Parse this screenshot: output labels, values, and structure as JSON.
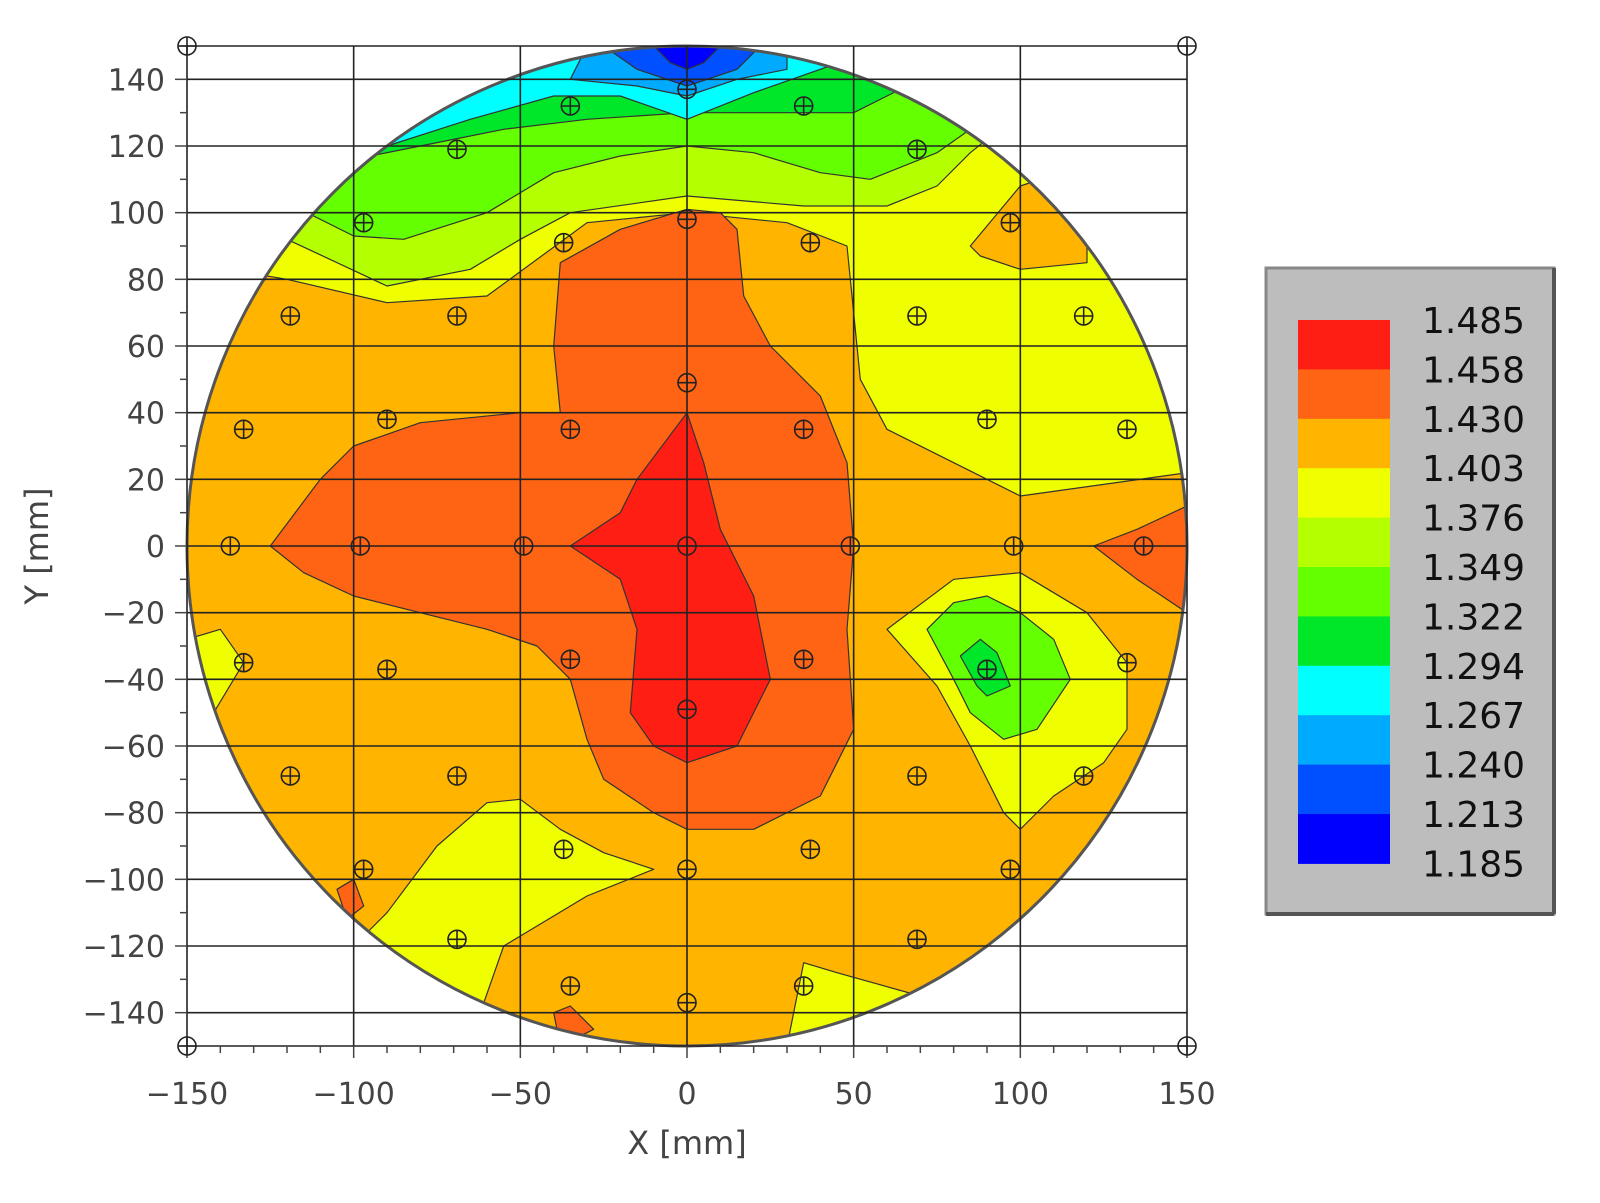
{
  "chart_data": {
    "type": "heatmap",
    "subtype": "wafer contour map",
    "title": "",
    "xlabel": "X [mm]",
    "ylabel": "Y [mm]",
    "xlim": [
      -150,
      150
    ],
    "ylim": [
      -150,
      150
    ],
    "wafer_radius_mm": 150,
    "x_ticks": [
      "−150",
      "−100",
      "−50",
      "0",
      "50",
      "100",
      "150"
    ],
    "y_ticks": [
      "140",
      "120",
      "100",
      "80",
      "60",
      "40",
      "20",
      "0",
      "−20",
      "−40",
      "−60",
      "−80",
      "−100",
      "−120",
      "−140"
    ],
    "grid": true,
    "legend_position": "right",
    "legend": {
      "levels": [
        "1.485",
        "1.458",
        "1.430",
        "1.403",
        "1.376",
        "1.349",
        "1.322",
        "1.294",
        "1.267",
        "1.240",
        "1.213",
        "1.185"
      ],
      "colors": [
        "#ff1e14",
        "#ff6414",
        "#ffb400",
        "#f0ff00",
        "#b4ff00",
        "#64ff00",
        "#00e628",
        "#00ffff",
        "#00aaff",
        "#0050ff",
        "#0000ff"
      ]
    },
    "band_colors": {
      "red": "#ff1e14",
      "orange_red": "#ff6414",
      "orange": "#ffb400",
      "yellow": "#f0ff00",
      "yellow_green": "#b4ff00",
      "green": "#64ff00",
      "deep_green": "#00e628",
      "cyan": "#00ffff",
      "sky": "#00aaff",
      "blue": "#0050ff",
      "deep_blue": "#0000ff"
    },
    "measurement_points": [
      {
        "x": 0,
        "y": 137
      },
      {
        "x": -35,
        "y": 132
      },
      {
        "x": 35,
        "y": 132
      },
      {
        "x": -69,
        "y": 119
      },
      {
        "x": 69,
        "y": 119
      },
      {
        "x": -97,
        "y": 97
      },
      {
        "x": 0,
        "y": 98
      },
      {
        "x": 97,
        "y": 97
      },
      {
        "x": -37,
        "y": 91
      },
      {
        "x": 37,
        "y": 91
      },
      {
        "x": -119,
        "y": 69
      },
      {
        "x": -69,
        "y": 69
      },
      {
        "x": 69,
        "y": 69
      },
      {
        "x": 119,
        "y": 69
      },
      {
        "x": 0,
        "y": 49
      },
      {
        "x": -133,
        "y": 35
      },
      {
        "x": -90,
        "y": 38
      },
      {
        "x": -35,
        "y": 35
      },
      {
        "x": 35,
        "y": 35
      },
      {
        "x": 90,
        "y": 38
      },
      {
        "x": 132,
        "y": 35
      },
      {
        "x": -137,
        "y": 0
      },
      {
        "x": -98,
        "y": 0
      },
      {
        "x": -49,
        "y": 0
      },
      {
        "x": 0,
        "y": 0
      },
      {
        "x": 49,
        "y": 0
      },
      {
        "x": 98,
        "y": 0
      },
      {
        "x": 137,
        "y": 0
      },
      {
        "x": -133,
        "y": -35
      },
      {
        "x": -90,
        "y": -37
      },
      {
        "x": -35,
        "y": -34
      },
      {
        "x": 35,
        "y": -34
      },
      {
        "x": 90,
        "y": -37
      },
      {
        "x": 132,
        "y": -35
      },
      {
        "x": 0,
        "y": -49
      },
      {
        "x": -119,
        "y": -69
      },
      {
        "x": -69,
        "y": -69
      },
      {
        "x": 69,
        "y": -69
      },
      {
        "x": 119,
        "y": -69
      },
      {
        "x": -37,
        "y": -91
      },
      {
        "x": 37,
        "y": -91
      },
      {
        "x": -97,
        "y": -97
      },
      {
        "x": 0,
        "y": -97
      },
      {
        "x": 97,
        "y": -97
      },
      {
        "x": -69,
        "y": -118
      },
      {
        "x": 69,
        "y": -118
      },
      {
        "x": -35,
        "y": -132
      },
      {
        "x": 35,
        "y": -132
      },
      {
        "x": 0,
        "y": -137
      },
      {
        "x": -150,
        "y": 150
      },
      {
        "x": 150,
        "y": 150
      },
      {
        "x": -150,
        "y": -150
      },
      {
        "x": 150,
        "y": -150
      }
    ],
    "regions": [
      {
        "band": "yellow",
        "points": [
          [
            -150,
            150
          ],
          [
            150,
            150
          ],
          [
            150,
            -150
          ],
          [
            -150,
            -150
          ]
        ]
      },
      {
        "band": "orange",
        "points": [
          [
            -150,
            85
          ],
          [
            -120,
            80
          ],
          [
            -90,
            73
          ],
          [
            -60,
            75
          ],
          [
            -30,
            97
          ],
          [
            0,
            100
          ],
          [
            30,
            97
          ],
          [
            48,
            90
          ],
          [
            52,
            50
          ],
          [
            60,
            35
          ],
          [
            80,
            25
          ],
          [
            100,
            15
          ],
          [
            150,
            22
          ],
          [
            150,
            -150
          ],
          [
            -150,
            -150
          ],
          [
            -150,
            -28
          ]
        ]
      },
      {
        "band": "orange",
        "points": [
          [
            85,
            90
          ],
          [
            100,
            108
          ],
          [
            112,
            112
          ],
          [
            120,
            112
          ],
          [
            120,
            85
          ],
          [
            100,
            83
          ],
          [
            88,
            87
          ]
        ]
      },
      {
        "band": "yellow",
        "points": [
          [
            -150,
            -28
          ],
          [
            -140,
            -25
          ],
          [
            -133,
            -35
          ],
          [
            -142,
            -50
          ],
          [
            -150,
            -52
          ]
        ]
      },
      {
        "band": "yellow",
        "points": [
          [
            60,
            -25
          ],
          [
            75,
            -42
          ],
          [
            85,
            -60
          ],
          [
            95,
            -80
          ],
          [
            100,
            -85
          ],
          [
            110,
            -75
          ],
          [
            125,
            -65
          ],
          [
            132,
            -55
          ],
          [
            132,
            -35
          ],
          [
            120,
            -20
          ],
          [
            100,
            -8
          ],
          [
            80,
            -10
          ]
        ]
      },
      {
        "band": "yellow",
        "points": [
          [
            -100,
            -120
          ],
          [
            -90,
            -110
          ],
          [
            -75,
            -90
          ],
          [
            -60,
            -77
          ],
          [
            -50,
            -76
          ],
          [
            -38,
            -85
          ],
          [
            -25,
            -92
          ],
          [
            -10,
            -97
          ],
          [
            -30,
            -105
          ],
          [
            -55,
            -120
          ],
          [
            -62,
            -140
          ],
          [
            -70,
            -150
          ],
          [
            -100,
            -150
          ]
        ]
      },
      {
        "band": "yellow",
        "points": [
          [
            30,
            -150
          ],
          [
            35,
            -125
          ],
          [
            45,
            -128
          ],
          [
            70,
            -135
          ],
          [
            75,
            -150
          ]
        ]
      },
      {
        "band": "orange_red",
        "points": [
          [
            -125,
            0
          ],
          [
            -110,
            20
          ],
          [
            -100,
            30
          ],
          [
            -80,
            37
          ],
          [
            -50,
            40
          ],
          [
            -38,
            40
          ],
          [
            -40,
            60
          ],
          [
            -38,
            85
          ],
          [
            -20,
            95
          ],
          [
            0,
            101
          ],
          [
            10,
            100
          ],
          [
            15,
            95
          ],
          [
            17,
            75
          ],
          [
            25,
            60
          ],
          [
            40,
            45
          ],
          [
            48,
            25
          ],
          [
            50,
            0
          ],
          [
            48,
            -25
          ],
          [
            50,
            -55
          ],
          [
            45,
            -65
          ],
          [
            40,
            -75
          ],
          [
            20,
            -85
          ],
          [
            0,
            -85
          ],
          [
            -10,
            -80
          ],
          [
            -25,
            -70
          ],
          [
            -30,
            -58
          ],
          [
            -35,
            -40
          ],
          [
            -45,
            -30
          ],
          [
            -60,
            -25
          ],
          [
            -80,
            -20
          ],
          [
            -100,
            -15
          ],
          [
            -115,
            -8
          ]
        ]
      },
      {
        "band": "orange_red",
        "points": [
          [
            150,
            12
          ],
          [
            135,
            5
          ],
          [
            122,
            0
          ],
          [
            135,
            -10
          ],
          [
            150,
            -20
          ]
        ]
      },
      {
        "band": "orange_red",
        "points": [
          [
            -105,
            -103
          ],
          [
            -100,
            -100
          ],
          [
            -97,
            -108
          ],
          [
            -102,
            -112
          ]
        ]
      },
      {
        "band": "red",
        "points": [
          [
            0,
            40
          ],
          [
            -15,
            20
          ],
          [
            -20,
            10
          ],
          [
            -35,
            0
          ],
          [
            -20,
            -10
          ],
          [
            -15,
            -25
          ],
          [
            -17,
            -50
          ],
          [
            -10,
            -60
          ],
          [
            0,
            -65
          ],
          [
            15,
            -60
          ],
          [
            25,
            -40
          ],
          [
            20,
            -15
          ],
          [
            10,
            5
          ],
          [
            5,
            25
          ]
        ]
      },
      {
        "band": "green",
        "points": [
          [
            72,
            -25
          ],
          [
            80,
            -40
          ],
          [
            85,
            -50
          ],
          [
            95,
            -58
          ],
          [
            105,
            -55
          ],
          [
            115,
            -40
          ],
          [
            110,
            -28
          ],
          [
            100,
            -20
          ],
          [
            90,
            -15
          ],
          [
            80,
            -17
          ]
        ]
      },
      {
        "band": "deep_green",
        "points": [
          [
            82,
            -33
          ],
          [
            87,
            -42
          ],
          [
            90,
            -45
          ],
          [
            97,
            -42
          ],
          [
            93,
            -32
          ],
          [
            88,
            -28
          ]
        ]
      },
      {
        "band": "yellow_green",
        "points": [
          [
            -150,
            135
          ],
          [
            -150,
            100
          ],
          [
            -120,
            92
          ],
          [
            -90,
            78
          ],
          [
            -65,
            83
          ],
          [
            -50,
            92
          ],
          [
            -35,
            100
          ],
          [
            0,
            105
          ],
          [
            35,
            102
          ],
          [
            60,
            102
          ],
          [
            75,
            108
          ],
          [
            85,
            118
          ],
          [
            100,
            130
          ],
          [
            150,
            135
          ],
          [
            150,
            150
          ],
          [
            -150,
            150
          ]
        ]
      },
      {
        "band": "green",
        "points": [
          [
            -150,
            140
          ],
          [
            -150,
            110
          ],
          [
            -120,
            103
          ],
          [
            -100,
            93
          ],
          [
            -85,
            92
          ],
          [
            -60,
            100
          ],
          [
            -40,
            112
          ],
          [
            -20,
            117
          ],
          [
            0,
            120
          ],
          [
            20,
            118
          ],
          [
            40,
            112
          ],
          [
            55,
            110
          ],
          [
            60,
            112
          ],
          [
            75,
            118
          ],
          [
            85,
            125
          ],
          [
            100,
            130
          ],
          [
            150,
            140
          ],
          [
            150,
            150
          ],
          [
            -150,
            150
          ]
        ]
      },
      {
        "band": "deep_green",
        "points": [
          [
            -150,
            150
          ],
          [
            -150,
            120
          ],
          [
            -100,
            116
          ],
          [
            -80,
            120
          ],
          [
            -55,
            125
          ],
          [
            -30,
            128
          ],
          [
            0,
            130
          ],
          [
            30,
            130
          ],
          [
            50,
            130
          ],
          [
            70,
            140
          ],
          [
            150,
            150
          ]
        ]
      },
      {
        "band": "cyan",
        "points": [
          [
            -150,
            150
          ],
          [
            -150,
            125
          ],
          [
            -90,
            120
          ],
          [
            -65,
            128
          ],
          [
            -40,
            135
          ],
          [
            -20,
            135
          ],
          [
            0,
            128
          ],
          [
            20,
            136
          ],
          [
            40,
            143
          ],
          [
            60,
            150
          ]
        ]
      },
      {
        "band": "sky",
        "points": [
          [
            -30,
            150
          ],
          [
            -35,
            140
          ],
          [
            -15,
            138
          ],
          [
            0,
            135
          ],
          [
            15,
            140
          ],
          [
            30,
            143
          ],
          [
            30,
            150
          ]
        ]
      },
      {
        "band": "blue",
        "points": [
          [
            -25,
            150
          ],
          [
            -15,
            143
          ],
          [
            0,
            138
          ],
          [
            15,
            143
          ],
          [
            22,
            150
          ]
        ]
      },
      {
        "band": "deep_blue",
        "points": [
          [
            -10,
            150
          ],
          [
            -5,
            145
          ],
          [
            0,
            143
          ],
          [
            5,
            145
          ],
          [
            10,
            150
          ]
        ]
      },
      {
        "band": "orange_red",
        "points": [
          [
            -40,
            -140
          ],
          [
            -35,
            -138
          ],
          [
            -28,
            -145
          ],
          [
            -38,
            -150
          ]
        ]
      }
    ]
  }
}
